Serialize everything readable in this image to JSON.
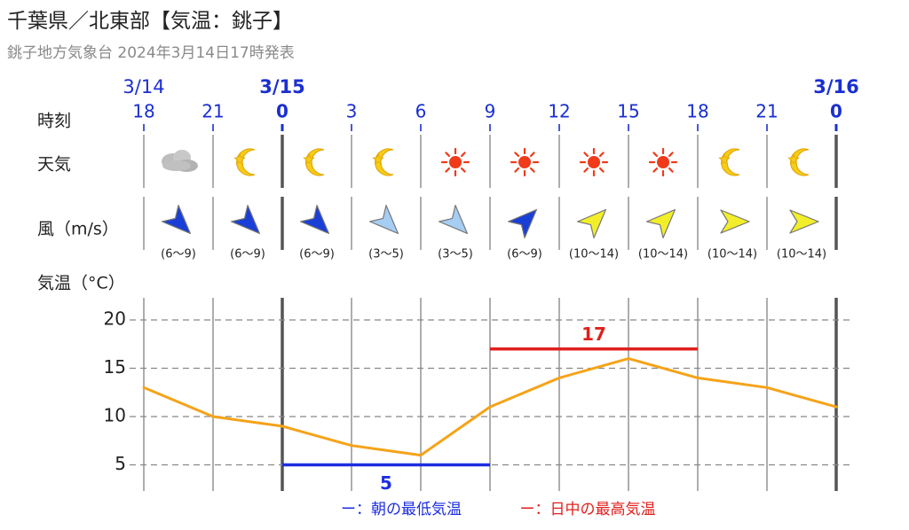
{
  "header": {
    "title": "千葉県／北東部【気温：銚子】",
    "subtitle": "銚子地方気象台 2024年3月14日17時発表"
  },
  "rows": {
    "time_label": "時刻",
    "weather_label": "天気",
    "wind_label": "風（m/s）",
    "temp_label": "気温（°C）"
  },
  "dates": [
    {
      "label": "3/14",
      "bold": false
    },
    {
      "label": "3/15",
      "bold": true
    },
    {
      "label": "3/16",
      "bold": true
    }
  ],
  "hours": [
    "18",
    "21",
    "0",
    "3",
    "6",
    "9",
    "12",
    "15",
    "18",
    "21",
    "0"
  ],
  "weather": [
    "cloud-icon",
    "moon-icon",
    "moon-icon",
    "moon-icon",
    "sun-icon",
    "sun-icon",
    "sun-icon",
    "sun-icon",
    "moon-icon",
    "moon-icon"
  ],
  "wind": [
    {
      "dir": "northwest",
      "range": "(6～9)",
      "color": "#1a3fd6"
    },
    {
      "dir": "northwest",
      "range": "(6～9)",
      "color": "#1a3fd6"
    },
    {
      "dir": "northwest",
      "range": "(6～9)",
      "color": "#1a3fd6"
    },
    {
      "dir": "northwest",
      "range": "(3～5)",
      "color": "#a6cdf2"
    },
    {
      "dir": "northwest",
      "range": "(3～5)",
      "color": "#a6cdf2"
    },
    {
      "dir": "southwest",
      "range": "(6～9)",
      "color": "#1a3fd6"
    },
    {
      "dir": "southwest",
      "range": "(10～14)",
      "color": "#f2ee2a"
    },
    {
      "dir": "southwest",
      "range": "(10～14)",
      "color": "#f2ee2a"
    },
    {
      "dir": "west",
      "range": "(10～14)",
      "color": "#f2ee2a"
    },
    {
      "dir": "west",
      "range": "(10～14)",
      "color": "#f2ee2a"
    }
  ],
  "legend": {
    "min_label": "ー：朝の最低気温",
    "max_label": "ー：日中の最高気温",
    "min_color": "#1d2ee0",
    "max_color": "#e0201d"
  },
  "chart_data": {
    "type": "line",
    "x": [
      "18",
      "21",
      "0",
      "3",
      "6",
      "9",
      "12",
      "15",
      "18",
      "21",
      "0"
    ],
    "series": [
      {
        "values": [
          13,
          10,
          9,
          7,
          6,
          11,
          14,
          16,
          14,
          13,
          11
        ],
        "color": "#f5a31a"
      }
    ],
    "ylim": [
      3,
      22
    ],
    "yticks": [
      5,
      10,
      15,
      20
    ],
    "grid": true,
    "min_temp": {
      "value": 5,
      "label": "5",
      "from": "0",
      "to": "9"
    },
    "max_temp": {
      "value": 17,
      "label": "17",
      "from": "9",
      "to": "18"
    }
  }
}
